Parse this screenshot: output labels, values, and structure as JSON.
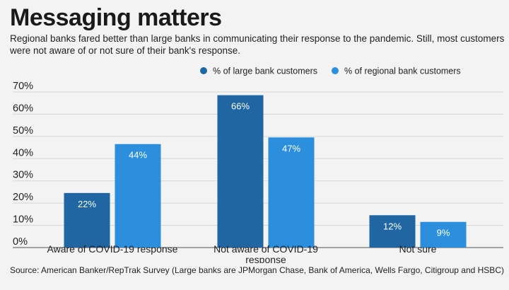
{
  "title": "Messaging matters",
  "subtitle": "Regional banks fared better than large banks in communicating their response to the pandemic. Still, most customers were not aware of or not sure of their bank's response.",
  "source": "Source: American Banker/RepTrak Survey (Large banks are JPMorgan Chase, Bank of America, Wells Fargo, Citigroup and HSBC)",
  "colors": {
    "large": "#1f66a3",
    "regional": "#2b8fde",
    "grid": "#d6d6d6",
    "axis": "#555555"
  },
  "chart_data": {
    "type": "bar",
    "title": "Messaging matters",
    "categories": [
      [
        "Aware of COVID-19 response"
      ],
      [
        "Not aware of COVID-19",
        "response"
      ],
      [
        "Not sure"
      ]
    ],
    "series": [
      {
        "name": "% of large bank customers",
        "values": [
          22,
          66,
          12
        ],
        "labels": [
          "22%",
          "66%",
          "12%"
        ]
      },
      {
        "name": "% of regional bank customers",
        "values": [
          44,
          47,
          9
        ],
        "labels": [
          "44%",
          "47%",
          "9%"
        ]
      }
    ],
    "yticks": [
      "0%",
      "10%",
      "20%",
      "30%",
      "40%",
      "50%",
      "60%",
      "70%"
    ],
    "ylim": [
      0,
      70
    ],
    "grid": true,
    "legend_position": "top-right"
  }
}
